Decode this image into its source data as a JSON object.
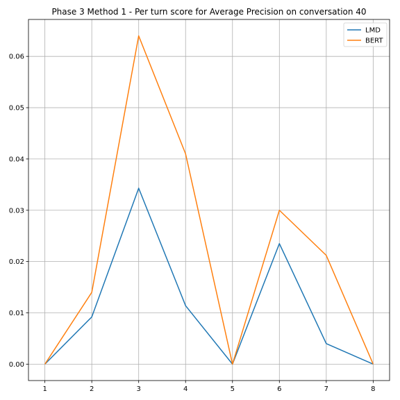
{
  "chart_data": {
    "type": "line",
    "title": "Phase 3 Method 1 - Per turn score for Average Precision on conversation 40",
    "xlabel": "",
    "ylabel": "",
    "x": [
      1,
      2,
      3,
      4,
      5,
      6,
      7,
      8
    ],
    "xlim": [
      0.65,
      8.35
    ],
    "ylim": [
      -0.0032,
      0.0672
    ],
    "xticks": [
      1,
      2,
      3,
      4,
      5,
      6,
      7,
      8
    ],
    "yticks": [
      0.0,
      0.01,
      0.02,
      0.03,
      0.04,
      0.05,
      0.06
    ],
    "ytick_labels": [
      "0.00",
      "0.01",
      "0.02",
      "0.03",
      "0.04",
      "0.05",
      "0.06"
    ],
    "grid": true,
    "legend_position": "top-right",
    "series": [
      {
        "name": "LMD",
        "color": "#1f77b4",
        "values": [
          0.0,
          0.0092,
          0.0343,
          0.0114,
          0.0,
          0.0235,
          0.004,
          0.0
        ]
      },
      {
        "name": "BERT",
        "color": "#ff7f0e",
        "values": [
          0.0,
          0.014,
          0.064,
          0.041,
          0.0,
          0.03,
          0.0212,
          0.0
        ]
      }
    ]
  }
}
